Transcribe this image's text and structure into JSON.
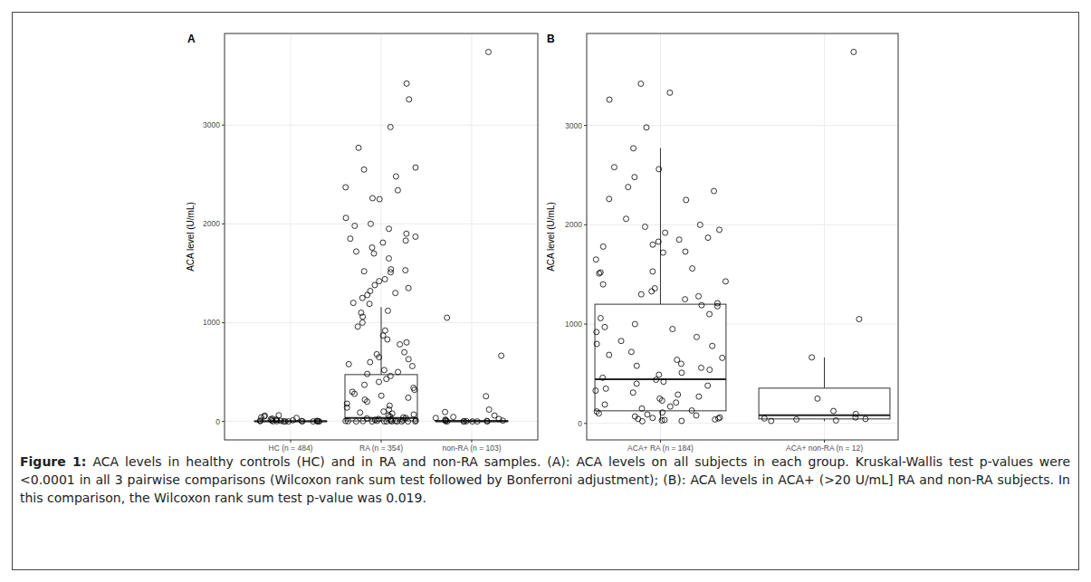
{
  "chart_data": [
    {
      "type": "box",
      "title": "A",
      "y_label": "ACA level (U/mL)",
      "categories": [
        "HC (n = 484)",
        "RA (n = 354)",
        "non-RA (n = 103)"
      ],
      "ylim": [
        -187,
        3927
      ],
      "yticks": [
        0,
        1000,
        2000,
        3000
      ],
      "grid": true,
      "marker": "circle",
      "boxes": [
        {
          "whisker_low": 0,
          "q1": 0,
          "median": 0,
          "q3": 5,
          "whisker_high": 12
        },
        {
          "whisker_low": 0,
          "q1": 5,
          "median": 36,
          "q3": 474,
          "whisker_high": 1158
        },
        {
          "whisker_low": 0,
          "q1": 0,
          "median": 1,
          "q3": 10,
          "whisker_high": 25
        }
      ],
      "points": [
        [
          0,
          0,
          0,
          0,
          0,
          0,
          1,
          1,
          2,
          2,
          3,
          4,
          5,
          6,
          8,
          10,
          12,
          15,
          18,
          22,
          28,
          35,
          42,
          50,
          58,
          62
        ],
        [
          3420,
          3260,
          2980,
          2770,
          2570,
          2550,
          2480,
          2370,
          2340,
          2260,
          2250,
          2060,
          2000,
          1980,
          1950,
          1900,
          1870,
          1850,
          1830,
          1810,
          1760,
          1720,
          1700,
          1650,
          1540,
          1530,
          1520,
          1510,
          1440,
          1420,
          1380,
          1350,
          1320,
          1300,
          1280,
          1250,
          1200,
          1190,
          1120,
          1100,
          1060,
          1000,
          960,
          920,
          870,
          830,
          800,
          780,
          700,
          680,
          650,
          630,
          600,
          580,
          560,
          520,
          500,
          480,
          460,
          430,
          400,
          370,
          340,
          320,
          300,
          280,
          260,
          240,
          220,
          200,
          180,
          160,
          140,
          120,
          100,
          90,
          80,
          70,
          60,
          50,
          40,
          35,
          30,
          25,
          20,
          15,
          12,
          10,
          8,
          6,
          5,
          4,
          3,
          2,
          1,
          0,
          0,
          0,
          0,
          0,
          0,
          0,
          0
        ],
        [
          3740,
          1050,
          665,
          255,
          120,
          95,
          60,
          45,
          35,
          25,
          18,
          12,
          8,
          5,
          3,
          2,
          1,
          0,
          0,
          0,
          0,
          0
        ]
      ]
    },
    {
      "type": "box",
      "title": "B",
      "y_label": "ACA level (U/mL)",
      "categories": [
        "ACA+ RA (n = 184)",
        "ACA+ non-RA (n = 12)"
      ],
      "ylim": [
        -166,
        3926
      ],
      "yticks": [
        0,
        1000,
        2000,
        3000
      ],
      "grid": true,
      "marker": "circle",
      "boxes": [
        {
          "whisker_low": 22,
          "q1": 127,
          "median": 445,
          "q3": 1200,
          "whisker_high": 2773
        },
        {
          "whisker_low": 22,
          "q1": 45,
          "median": 82,
          "q3": 355,
          "whisker_high": 664
        }
      ],
      "points": [
        [
          3420,
          3330,
          3260,
          2980,
          2770,
          2580,
          2560,
          2480,
          2380,
          2340,
          2260,
          2250,
          2060,
          2000,
          1980,
          1950,
          1920,
          1870,
          1850,
          1830,
          1800,
          1780,
          1730,
          1720,
          1650,
          1560,
          1530,
          1520,
          1510,
          1430,
          1400,
          1360,
          1330,
          1300,
          1280,
          1250,
          1210,
          1190,
          1180,
          1100,
          1060,
          1000,
          970,
          950,
          920,
          870,
          830,
          800,
          780,
          720,
          690,
          660,
          640,
          600,
          580,
          560,
          540,
          510,
          490,
          460,
          440,
          420,
          400,
          380,
          350,
          330,
          310,
          290,
          270,
          250,
          230,
          210,
          190,
          170,
          150,
          130,
          120,
          110,
          100,
          90,
          80,
          70,
          60,
          55,
          50,
          45,
          40,
          35,
          30,
          25,
          22
        ],
        [
          3740,
          1050,
          665,
          250,
          125,
          95,
          60,
          50,
          45,
          40,
          30,
          25
        ]
      ]
    }
  ],
  "caption": {
    "label": "Figure 1:",
    "text": "ACA levels in healthy controls (HC) and in RA and non-RA samples. (A): ACA levels on all subjects in each group. Kruskal-Wallis test p-values were <0.0001 in all 3 pairwise comparisons (Wilcoxon rank sum test followed by Bonferroni adjustment); (B): ACA levels in ACA+ (>20 U/mL] RA and non-RA subjects. In this comparison, the Wilcoxon rank sum test p-value was 0.019."
  }
}
